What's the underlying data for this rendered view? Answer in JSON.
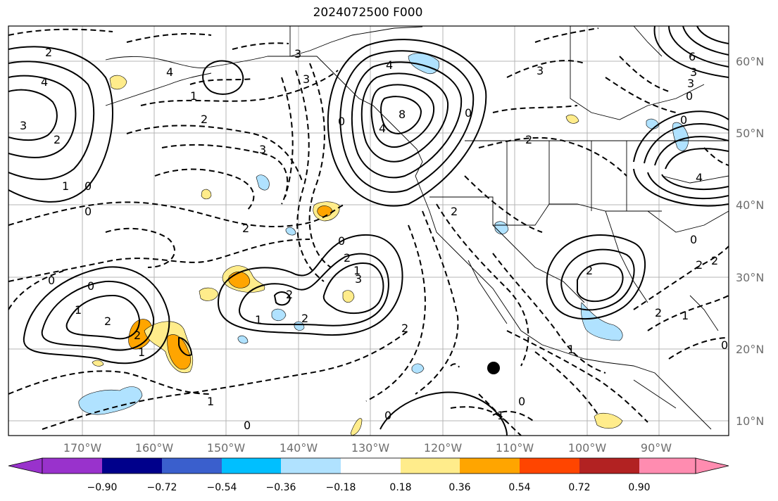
{
  "title": "2024072500 F000",
  "lon_ticks": [
    "170°W",
    "160°W",
    "150°W",
    "140°W",
    "130°W",
    "120°W",
    "110°W",
    "100°W",
    "90°W"
  ],
  "lat_ticks": [
    "60°N",
    "50°N",
    "40°N",
    "30°N",
    "20°N",
    "10°N"
  ],
  "colorbar": {
    "labels": [
      "−0.90",
      "−0.72",
      "−0.54",
      "−0.36",
      "−0.18",
      "0.18",
      "0.36",
      "0.54",
      "0.72",
      "0.90"
    ],
    "colors": [
      "#9932cc",
      "#00008b",
      "#3a5fcd",
      "#00bfff",
      "#b0e2ff",
      "#ffffff",
      "#ffec8b",
      "#ffa500",
      "#ff4500",
      "#b22222",
      "#ff8cb0"
    ]
  },
  "contour_labels": [
    {
      "text": "2"
    },
    {
      "text": "4"
    },
    {
      "text": "3"
    },
    {
      "text": "2"
    },
    {
      "text": "1"
    },
    {
      "text": "0"
    },
    {
      "text": "0"
    },
    {
      "text": "1"
    },
    {
      "text": "2"
    },
    {
      "text": "3"
    },
    {
      "text": "4"
    },
    {
      "text": "3"
    },
    {
      "text": "3"
    },
    {
      "text": "4"
    },
    {
      "text": "8"
    },
    {
      "text": "4"
    },
    {
      "text": "0"
    },
    {
      "text": "2"
    },
    {
      "text": "2"
    },
    {
      "text": "1"
    },
    {
      "text": "0"
    },
    {
      "text": "1"
    },
    {
      "text": "2"
    },
    {
      "text": "0"
    },
    {
      "text": "2"
    },
    {
      "text": "1"
    },
    {
      "text": "2"
    },
    {
      "text": "2"
    },
    {
      "text": "3"
    },
    {
      "text": "0"
    },
    {
      "text": "2"
    },
    {
      "text": "2"
    },
    {
      "text": "2"
    },
    {
      "text": "1"
    },
    {
      "text": "0"
    },
    {
      "text": "1"
    },
    {
      "text": "0"
    },
    {
      "text": "1"
    },
    {
      "text": "0"
    },
    {
      "text": "2"
    },
    {
      "text": "2"
    },
    {
      "text": "3"
    },
    {
      "text": "6"
    },
    {
      "text": "3"
    },
    {
      "text": "0"
    },
    {
      "text": "0"
    },
    {
      "text": "4"
    },
    {
      "text": "0"
    },
    {
      "text": "1"
    },
    {
      "text": "2"
    },
    {
      "text": "0"
    },
    {
      "text": "2"
    },
    {
      "text": "1"
    },
    {
      "text": "0"
    },
    {
      "text": "3"
    }
  ]
}
